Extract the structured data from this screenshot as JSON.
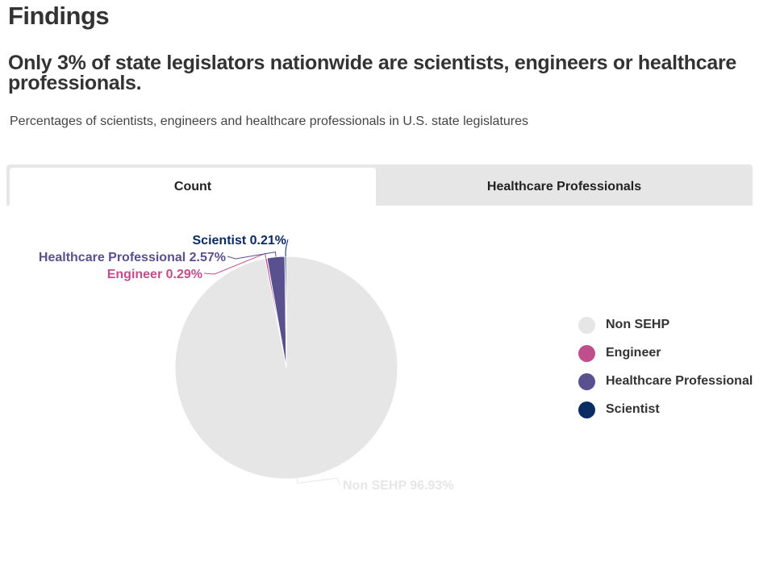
{
  "page": {
    "heading": "Findings",
    "subheading": "Only 3% of state legislators nationwide are scientists, engineers or healthcare professionals.",
    "description": "Percentages of scientists, engineers and healthcare professionals in U.S. state legislatures"
  },
  "tabs": [
    {
      "label": "Count",
      "active": true
    },
    {
      "label": "Healthcare Professionals",
      "active": false
    }
  ],
  "chart_data": {
    "type": "pie",
    "title": "",
    "slices": [
      {
        "name": "Non SEHP",
        "value": 96.93,
        "color": "#e6e6e6",
        "label": "Non SEHP 96.93%"
      },
      {
        "name": "Engineer",
        "value": 0.29,
        "color": "#c04e8c",
        "label": "Engineer 0.29%"
      },
      {
        "name": "Healthcare Professional",
        "value": 2.57,
        "color": "#59508f",
        "label": "Healthcare Professional 2.57%"
      },
      {
        "name": "Scientist",
        "value": 0.21,
        "color": "#0b2b63",
        "label": "Scientist 0.21%"
      }
    ],
    "legend": "right",
    "legend_items": [
      "Non SEHP",
      "Engineer",
      "Healthcare Professional",
      "Scientist"
    ]
  }
}
